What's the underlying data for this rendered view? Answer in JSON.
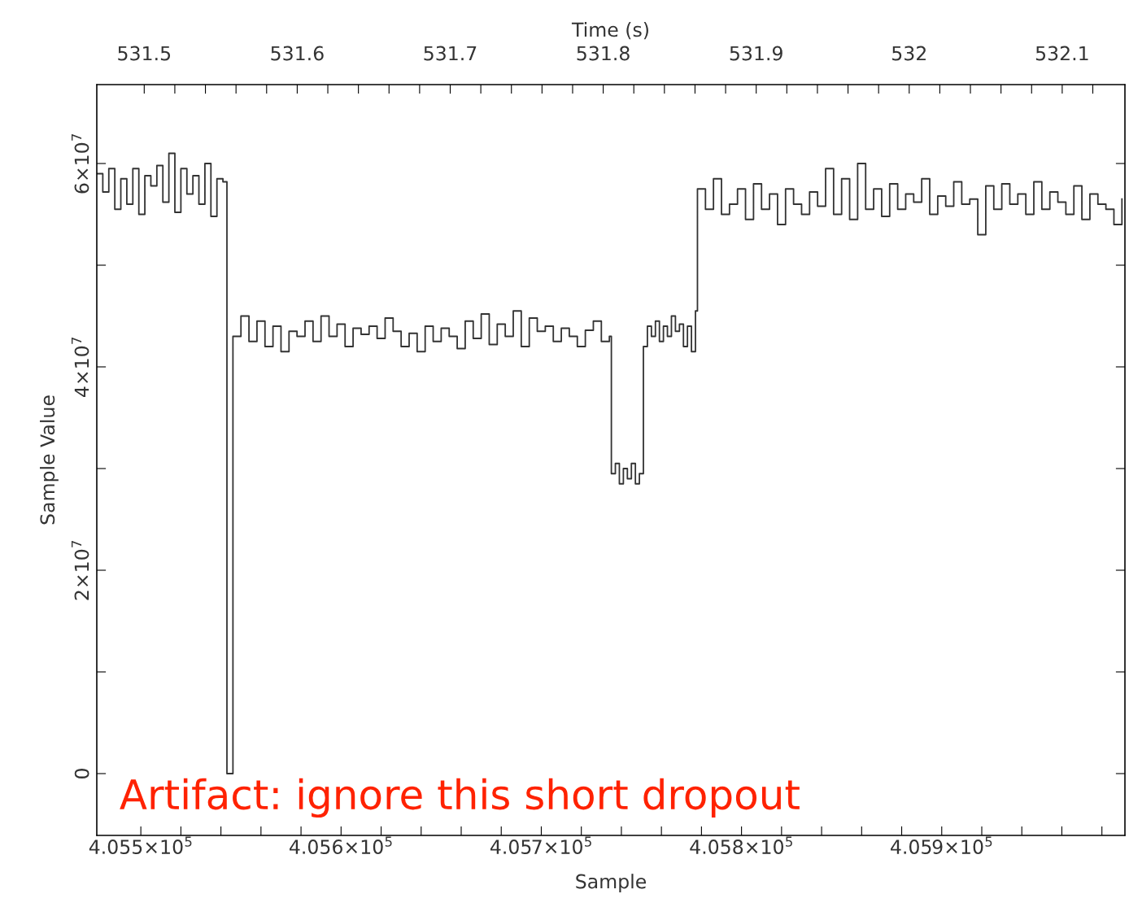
{
  "chart_data": {
    "type": "step",
    "xlabel": "Sample",
    "x2label": "Time (s)",
    "ylabel": "Sample Value",
    "annotations": [
      "Artifact: ignore this short dropout"
    ],
    "x": [
      405478,
      405481,
      405484,
      405487,
      405490,
      405493,
      405496,
      405499,
      405502,
      405505,
      405508,
      405511,
      405514,
      405517,
      405520,
      405523,
      405526,
      405529,
      405532,
      405535,
      405538,
      405541,
      405543,
      405546,
      405550,
      405554,
      405558,
      405562,
      405566,
      405570,
      405574,
      405578,
      405582,
      405586,
      405590,
      405594,
      405598,
      405602,
      405606,
      405610,
      405614,
      405618,
      405622,
      405626,
      405630,
      405634,
      405638,
      405642,
      405646,
      405650,
      405654,
      405658,
      405662,
      405666,
      405670,
      405674,
      405678,
      405682,
      405686,
      405690,
      405694,
      405698,
      405702,
      405706,
      405710,
      405714,
      405718,
      405722,
      405726,
      405730,
      405734,
      405735,
      405737,
      405739,
      405741,
      405743,
      405745,
      405747,
      405749,
      405751,
      405753,
      405755,
      405757,
      405759,
      405761,
      405763,
      405765,
      405767,
      405769,
      405771,
      405773,
      405775,
      405777,
      405778,
      405782,
      405786,
      405790,
      405794,
      405798,
      405802,
      405806,
      405810,
      405814,
      405818,
      405822,
      405826,
      405830,
      405834,
      405838,
      405842,
      405846,
      405850,
      405854,
      405858,
      405862,
      405866,
      405870,
      405874,
      405878,
      405882,
      405886,
      405890,
      405894,
      405898,
      405902,
      405906,
      405910,
      405914,
      405918,
      405922,
      405926,
      405930,
      405934,
      405938,
      405942,
      405946,
      405950,
      405954,
      405958,
      405962,
      405966,
      405970,
      405974,
      405978,
      405982,
      405986,
      405990
    ],
    "series": [
      {
        "color": "#333333",
        "values": [
          59000000.0,
          57200000.0,
          59500000.0,
          55500000.0,
          58500000.0,
          56000000.0,
          59500000.0,
          55000000.0,
          58800000.0,
          57800000.0,
          59800000.0,
          56200000.0,
          61000000.0,
          55200000.0,
          59500000.0,
          57000000.0,
          58800000.0,
          56000000.0,
          60000000.0,
          54800000.0,
          58500000.0,
          58200000.0,
          0,
          43000000.0,
          45000000.0,
          42500000.0,
          44500000.0,
          42000000.0,
          44000000.0,
          41500000.0,
          43500000.0,
          43000000.0,
          44500000.0,
          42500000.0,
          45000000.0,
          43000000.0,
          44200000.0,
          42000000.0,
          43800000.0,
          43200000.0,
          44000000.0,
          42800000.0,
          44800000.0,
          43500000.0,
          42000000.0,
          43300000.0,
          41500000.0,
          44000000.0,
          42500000.0,
          43800000.0,
          43000000.0,
          41800000.0,
          44500000.0,
          42800000.0,
          45200000.0,
          42200000.0,
          44200000.0,
          43000000.0,
          45500000.0,
          42000000.0,
          44800000.0,
          43500000.0,
          44000000.0,
          42500000.0,
          43800000.0,
          43000000.0,
          42000000.0,
          43600000.0,
          44500000.0,
          42500000.0,
          43000000.0,
          29500000.0,
          30500000.0,
          28500000.0,
          30000000.0,
          29000000.0,
          30500000.0,
          28500000.0,
          29500000.0,
          42000000.0,
          44000000.0,
          43000000.0,
          44500000.0,
          42500000.0,
          44000000.0,
          43000000.0,
          45000000.0,
          43500000.0,
          44200000.0,
          42000000.0,
          44000000.0,
          41500000.0,
          45500000.0,
          57500000.0,
          55500000.0,
          58500000.0,
          55000000.0,
          56000000.0,
          57500000.0,
          54500000.0,
          58000000.0,
          55500000.0,
          57000000.0,
          54000000.0,
          57500000.0,
          56000000.0,
          55000000.0,
          57200000.0,
          55800000.0,
          59500000.0,
          55000000.0,
          58500000.0,
          54500000.0,
          60000000.0,
          55500000.0,
          57500000.0,
          54800000.0,
          58000000.0,
          55500000.0,
          57000000.0,
          56200000.0,
          58500000.0,
          55000000.0,
          56800000.0,
          55800000.0,
          58200000.0,
          56000000.0,
          56500000.0,
          53000000.0,
          57800000.0,
          55500000.0,
          58000000.0,
          56000000.0,
          57000000.0,
          55000000.0,
          58200000.0,
          55500000.0,
          57200000.0,
          56200000.0,
          55000000.0,
          57800000.0,
          54500000.0,
          57000000.0,
          56000000.0,
          55500000.0,
          54000000.0,
          56500000.0
        ]
      }
    ],
    "xlim": [
      405478,
      405991.5
    ],
    "xticks": [
      {
        "value": 405500,
        "label": "4.055×10$^{5}$"
      },
      {
        "value": 405520,
        "label": null
      },
      {
        "value": 405540,
        "label": null
      },
      {
        "value": 405560,
        "label": null
      },
      {
        "value": 405580,
        "label": null
      },
      {
        "value": 405600,
        "label": "4.056×10$^{5}$"
      },
      {
        "value": 405620,
        "label": null
      },
      {
        "value": 405640,
        "label": null
      },
      {
        "value": 405660,
        "label": null
      },
      {
        "value": 405680,
        "label": null
      },
      {
        "value": 405700,
        "label": "4.057×10$^{5}$"
      },
      {
        "value": 405720,
        "label": null
      },
      {
        "value": 405740,
        "label": null
      },
      {
        "value": 405760,
        "label": null
      },
      {
        "value": 405780,
        "label": null
      },
      {
        "value": 405800,
        "label": "4.058×10$^{5}$"
      },
      {
        "value": 405820,
        "label": null
      },
      {
        "value": 405840,
        "label": null
      },
      {
        "value": 405860,
        "label": null
      },
      {
        "value": 405880,
        "label": null
      },
      {
        "value": 405900,
        "label": "4.059×10$^{5}$"
      },
      {
        "value": 405920,
        "label": null
      },
      {
        "value": 405940,
        "label": null
      },
      {
        "value": 405960,
        "label": null
      },
      {
        "value": 405980,
        "label": null
      }
    ],
    "x2lim": [
      531.469,
      532.141
    ],
    "x2ticks": [
      531.5,
      {
        "value": 531.52,
        "label": null
      },
      {
        "value": 531.54,
        "label": null
      },
      {
        "value": 531.56,
        "label": null
      },
      {
        "value": 531.58,
        "label": null
      },
      531.6,
      {
        "value": 531.62,
        "label": null
      },
      {
        "value": 531.64,
        "label": null
      },
      {
        "value": 531.66,
        "label": null
      },
      {
        "value": 531.68,
        "label": null
      },
      531.7,
      {
        "value": 531.72,
        "label": null
      },
      {
        "value": 531.74,
        "label": null
      },
      {
        "value": 531.76,
        "label": null
      },
      {
        "value": 531.78,
        "label": null
      },
      531.8,
      {
        "value": 531.82,
        "label": null
      },
      {
        "value": 531.84,
        "label": null
      },
      {
        "value": 531.86,
        "label": null
      },
      {
        "value": 531.88,
        "label": null
      },
      531.9,
      {
        "value": 531.92,
        "label": null
      },
      {
        "value": 531.94,
        "label": null
      },
      {
        "value": 531.96,
        "label": null
      },
      {
        "value": 531.98,
        "label": null
      },
      532,
      {
        "value": 532.02,
        "label": null
      },
      {
        "value": 532.04,
        "label": null
      },
      {
        "value": 532.06,
        "label": null
      },
      {
        "value": 532.08,
        "label": null
      },
      532.1,
      {
        "value": 532.12,
        "label": null
      }
    ],
    "ylim": [
      -6080000.0,
      67760000.0
    ],
    "yticks": [
      0,
      {
        "value": 10000000.0,
        "label": null
      },
      {
        "value": 20000000.0,
        "label": "2×10$^{7}$"
      },
      {
        "value": 30000000.0,
        "label": null
      },
      {
        "value": 40000000.0,
        "label": "4×10$^{7}$"
      },
      {
        "value": 50000000.0,
        "label": null
      },
      {
        "value": 60000000.0,
        "label": "6×10$^{7}$"
      }
    ],
    "grid": false,
    "line_style": "solid",
    "marker": "none"
  }
}
